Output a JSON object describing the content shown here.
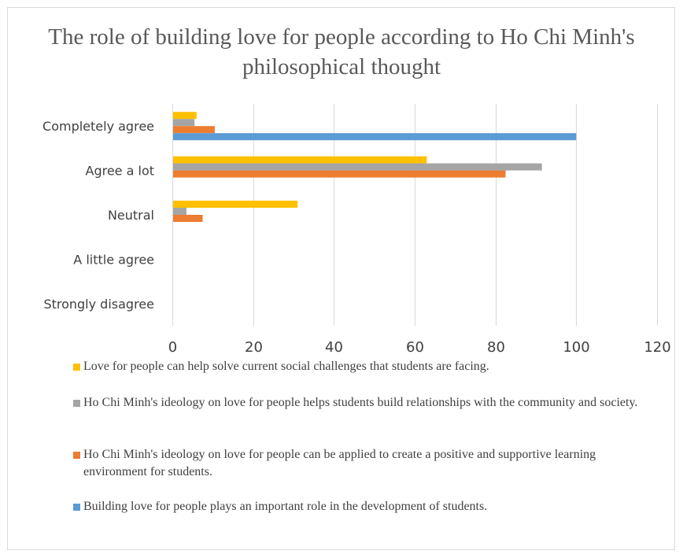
{
  "chart_data": {
    "type": "bar",
    "orientation": "horizontal",
    "title": "The role of building love for people according to Ho Chi Minh's philosophical thought",
    "categories": [
      "Completely agree",
      "Agree a lot",
      "Neutral",
      "A little agree",
      "Strongly disagree"
    ],
    "series": [
      {
        "name": "Love for people can help solve current social challenges that students are facing.",
        "color": "#FFC000",
        "values": [
          6,
          63,
          31,
          0,
          0
        ]
      },
      {
        "name": "Ho Chi Minh's ideology on love for people helps students build relationships with the community and society.",
        "color": "#A5A5A5",
        "values": [
          5.5,
          91.5,
          3.5,
          0,
          0
        ]
      },
      {
        "name": "Ho Chi Minh's ideology on love for people can be applied to create a positive and supportive learning environment for students.",
        "color": "#ED7D31",
        "values": [
          10.5,
          82.5,
          7.5,
          0,
          0
        ]
      },
      {
        "name": "Building love for people plays an important role in the development of students.",
        "color": "#5B9BD5",
        "values": [
          100,
          0,
          0,
          0,
          0
        ]
      }
    ],
    "xlim": [
      0,
      120
    ],
    "xticks": [
      "0",
      "20",
      "40",
      "60",
      "80",
      "100",
      "120"
    ],
    "grid": true,
    "legend_position": "bottom"
  }
}
